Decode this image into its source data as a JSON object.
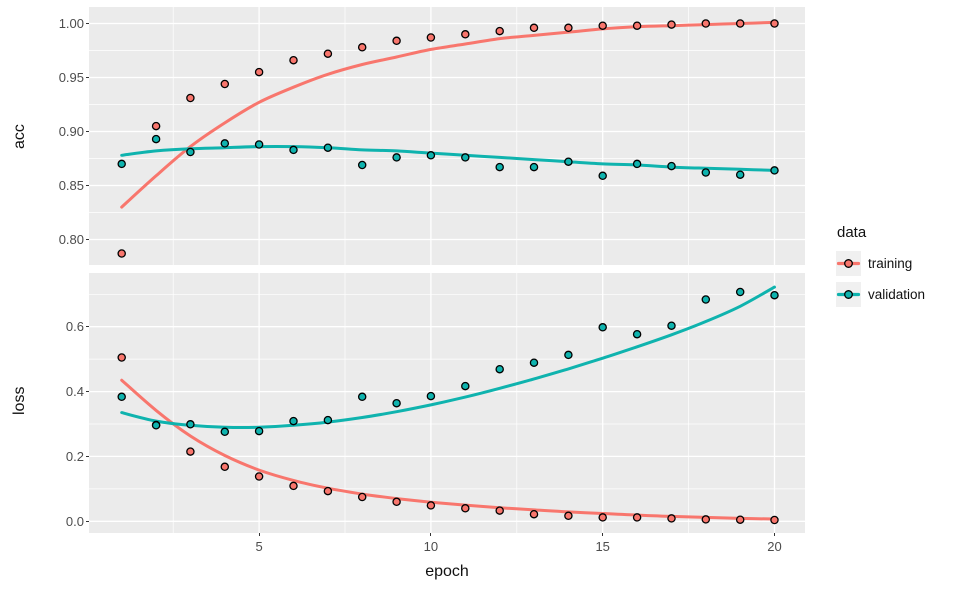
{
  "chart_data": {
    "type": "scatter",
    "style": "ggplot2-gray-theme, two stacked facets sharing x axis, loess smooth lines with points",
    "x_label": "epoch",
    "x": [
      1,
      2,
      3,
      4,
      5,
      6,
      7,
      8,
      9,
      10,
      11,
      12,
      13,
      14,
      15,
      16,
      17,
      18,
      19,
      20
    ],
    "x_ticks": [
      5,
      10,
      15,
      20
    ],
    "xlim": [
      0.05,
      20.95
    ],
    "legend": {
      "title": "data",
      "entries": [
        {
          "name": "training",
          "color": "#F8766D"
        },
        {
          "name": "validation",
          "color": "#0FB3AE"
        }
      ]
    },
    "colors": {
      "panel_background": "#EBEBEB",
      "grid": "#FFFFFF",
      "tick_text": "#4D4D4D",
      "point_outline": "#000000"
    },
    "panels": [
      {
        "name": "acc",
        "y_label": "acc",
        "y_ticks": [
          1.0,
          0.95,
          0.9,
          0.85,
          0.8
        ],
        "y_tick_labels": [
          "1.00",
          "0.95",
          "0.90",
          "0.85",
          "0.80"
        ],
        "ylim": [
          0.777,
          1.011
        ],
        "series": [
          {
            "name": "training",
            "points": [
              0.787,
              0.905,
              0.931,
              0.944,
              0.955,
              0.966,
              0.972,
              0.978,
              0.984,
              0.987,
              0.99,
              0.993,
              0.996,
              0.996,
              0.998,
              0.998,
              0.999,
              1.0,
              1.0,
              1.0
            ],
            "smooth": [
              0.83,
              0.859,
              0.886,
              0.908,
              0.927,
              0.941,
              0.953,
              0.962,
              0.969,
              0.976,
              0.981,
              0.986,
              0.989,
              0.992,
              0.995,
              0.997,
              0.998,
              0.999,
              1.0,
              1.001
            ]
          },
          {
            "name": "validation",
            "points": [
              0.87,
              0.893,
              0.881,
              0.889,
              0.888,
              0.883,
              0.885,
              0.869,
              0.876,
              0.878,
              0.876,
              0.867,
              0.867,
              0.872,
              0.859,
              0.87,
              0.868,
              0.862,
              0.86,
              0.864
            ],
            "smooth": [
              0.878,
              0.882,
              0.884,
              0.885,
              0.886,
              0.886,
              0.885,
              0.883,
              0.882,
              0.88,
              0.878,
              0.876,
              0.874,
              0.872,
              0.87,
              0.869,
              0.867,
              0.866,
              0.865,
              0.864
            ]
          }
        ]
      },
      {
        "name": "loss",
        "y_label": "loss",
        "y_ticks": [
          0.6,
          0.4,
          0.2,
          0.0
        ],
        "y_tick_labels": [
          "0.6",
          "0.4",
          "0.2",
          "0.0"
        ],
        "ylim": [
          -0.037,
          0.766
        ],
        "series": [
          {
            "name": "training",
            "points": [
              0.505,
              0.297,
              0.215,
              0.168,
              0.138,
              0.109,
              0.093,
              0.075,
              0.06,
              0.049,
              0.04,
              0.033,
              0.022,
              0.017,
              0.012,
              0.012,
              0.009,
              0.006,
              0.005,
              0.004
            ],
            "smooth": [
              0.435,
              0.342,
              0.263,
              0.203,
              0.158,
              0.126,
              0.102,
              0.084,
              0.07,
              0.059,
              0.05,
              0.042,
              0.035,
              0.029,
              0.024,
              0.019,
              0.015,
              0.012,
              0.009,
              0.007
            ]
          },
          {
            "name": "validation",
            "points": [
              0.384,
              0.296,
              0.299,
              0.276,
              0.278,
              0.309,
              0.312,
              0.384,
              0.364,
              0.386,
              0.417,
              0.469,
              0.489,
              0.513,
              0.598,
              0.577,
              0.603,
              0.684,
              0.707,
              0.697
            ],
            "smooth": [
              0.335,
              0.309,
              0.296,
              0.29,
              0.29,
              0.296,
              0.306,
              0.32,
              0.338,
              0.359,
              0.383,
              0.41,
              0.439,
              0.47,
              0.503,
              0.538,
              0.575,
              0.616,
              0.663,
              0.722
            ]
          }
        ]
      }
    ]
  }
}
